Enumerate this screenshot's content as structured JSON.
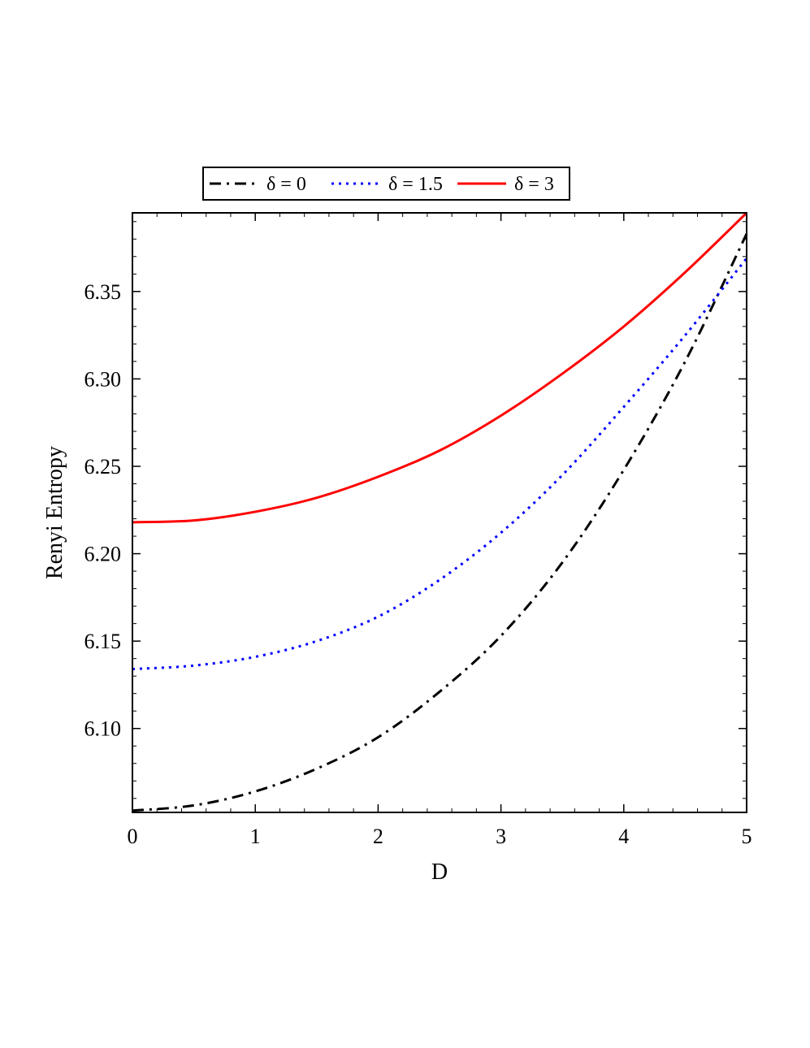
{
  "chart_data": {
    "type": "line",
    "title": "",
    "xlabel": "D",
    "ylabel": "Renyi Entropy",
    "xlim": [
      0,
      5
    ],
    "ylim": [
      6.052,
      6.395
    ],
    "xticks": [
      0,
      1,
      2,
      3,
      4,
      5
    ],
    "xtick_labels": [
      "0",
      "1",
      "2",
      "3",
      "4",
      "5"
    ],
    "yticks": [
      6.1,
      6.15,
      6.2,
      6.25,
      6.3,
      6.35
    ],
    "ytick_labels": [
      "6.10",
      "6.15",
      "6.20",
      "6.25",
      "6.30",
      "6.35"
    ],
    "grid": false,
    "legend_position": "top-center",
    "x": [
      0,
      0.5,
      1,
      1.5,
      2,
      2.5,
      3,
      3.5,
      4,
      4.5,
      5
    ],
    "series": [
      {
        "name": "δ = 0",
        "color": "#000000",
        "style": "dash-dot",
        "values": [
          6.053,
          6.056,
          6.064,
          6.077,
          6.095,
          6.121,
          6.153,
          6.195,
          6.248,
          6.31,
          6.383
        ]
      },
      {
        "name": "δ = 1.5",
        "color": "#0000ff",
        "style": "dotted",
        "values": [
          6.134,
          6.136,
          6.141,
          6.15,
          6.164,
          6.185,
          6.212,
          6.245,
          6.284,
          6.325,
          6.369
        ]
      },
      {
        "name": "δ = 3",
        "color": "#ff0000",
        "style": "solid",
        "values": [
          6.218,
          6.219,
          6.224,
          6.232,
          6.244,
          6.259,
          6.279,
          6.303,
          6.33,
          6.361,
          6.395
        ]
      }
    ]
  }
}
